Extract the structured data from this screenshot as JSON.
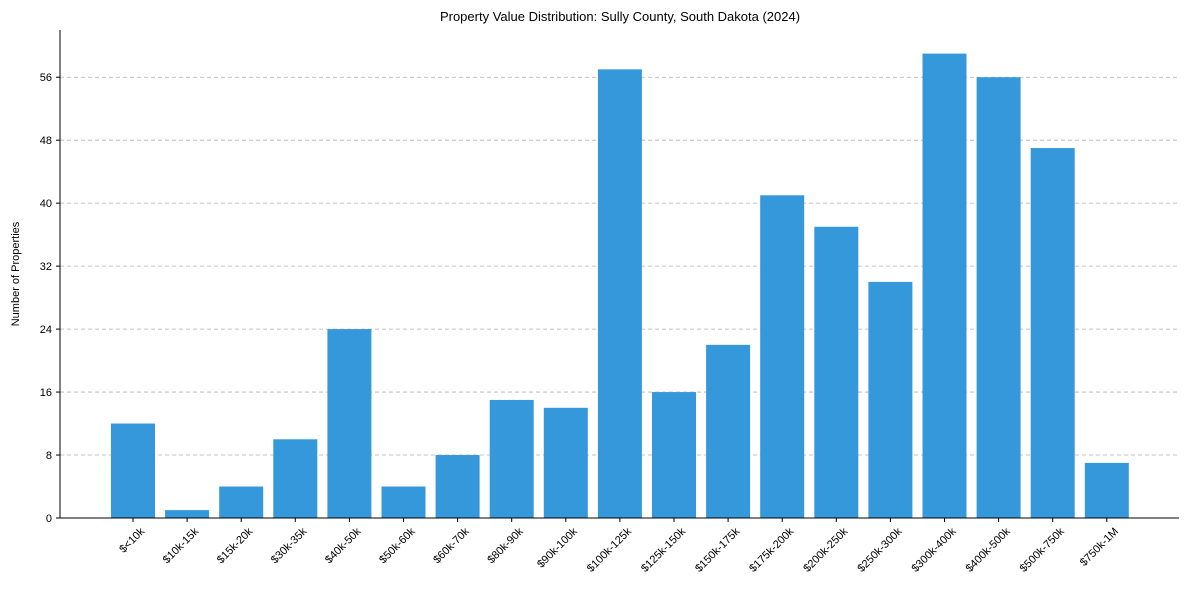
{
  "chart_data": {
    "type": "bar",
    "title": "Property Value Distribution: Sully County, South Dakota (2024)",
    "xlabel": "",
    "ylabel": "Number of Properties",
    "categories": [
      "$<10k",
      "$10k-15k",
      "$15k-20k",
      "$30k-35k",
      "$40k-50k",
      "$50k-60k",
      "$60k-70k",
      "$80k-90k",
      "$90k-100k",
      "$100k-125k",
      "$125k-150k",
      "$150k-175k",
      "$175k-200k",
      "$200k-250k",
      "$250k-300k",
      "$300k-400k",
      "$400k-500k",
      "$500k-750k",
      "$750k-1M"
    ],
    "values": [
      12,
      1,
      4,
      10,
      24,
      4,
      8,
      15,
      14,
      57,
      16,
      22,
      41,
      37,
      30,
      59,
      56,
      47,
      7
    ],
    "ylim": [
      0,
      62
    ],
    "yticks": [
      0,
      8,
      16,
      24,
      32,
      40,
      48,
      56
    ],
    "bar_color": "#3498db",
    "grid": true
  }
}
